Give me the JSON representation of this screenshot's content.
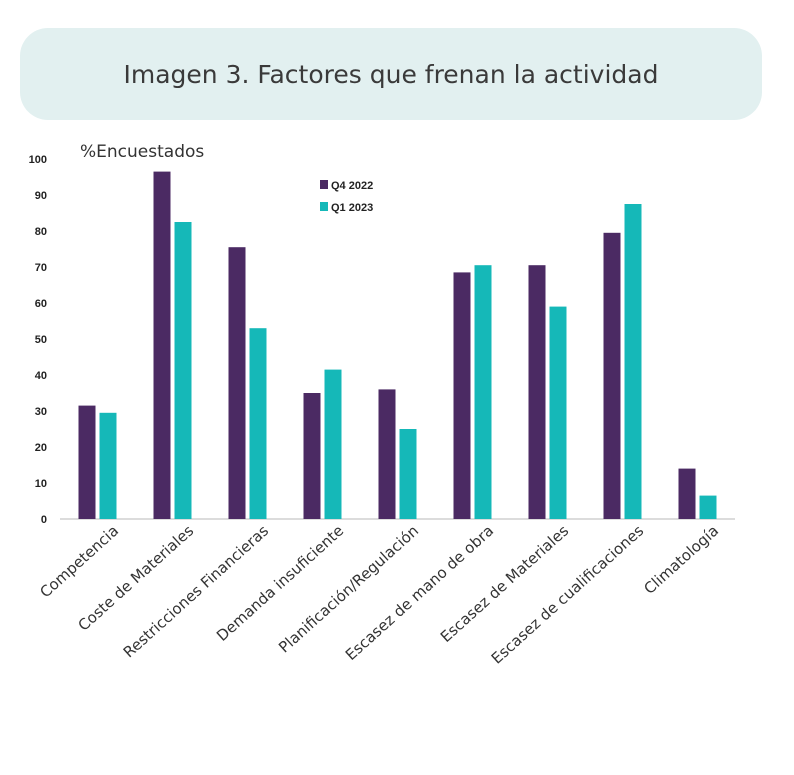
{
  "chart_data": {
    "type": "bar",
    "title": "Imagen 3. Factores que frenan la actividad",
    "ylabel": "%Encuestados",
    "xlabel": "",
    "ylim": [
      0,
      100
    ],
    "yticks": [
      0,
      10,
      20,
      30,
      40,
      50,
      60,
      70,
      80,
      90,
      100
    ],
    "grid": false,
    "legend_position": "top-center",
    "categories": [
      "Competencia",
      "Coste de Materiales",
      "Restricciones Financieras",
      "Demanda insuficiente",
      "Planificación/Regulación",
      "Escasez de mano de obra",
      "Escasez de Materiales",
      "Escasez de cualificaciones",
      "Climatología"
    ],
    "series": [
      {
        "name": "Q4 2022",
        "color": "#4b2a63",
        "values": [
          31.5,
          96.5,
          75.5,
          35,
          36,
          68.5,
          70.5,
          79.5,
          14
        ]
      },
      {
        "name": "Q1 2023",
        "color": "#15b8b8",
        "values": [
          29.5,
          82.5,
          53,
          41.5,
          25,
          70.5,
          59,
          87.5,
          6.5
        ]
      }
    ]
  }
}
